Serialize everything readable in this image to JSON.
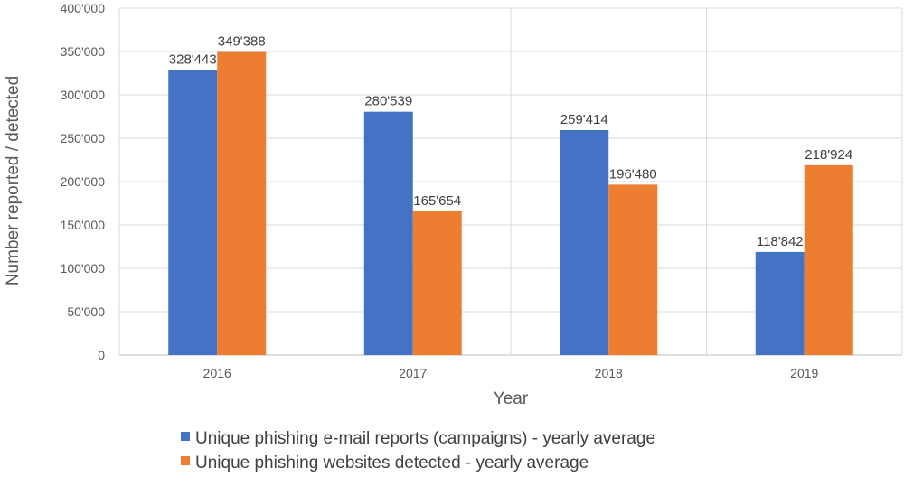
{
  "chart_data": {
    "type": "bar",
    "categories": [
      "2016",
      "2017",
      "2018",
      "2019"
    ],
    "series": [
      {
        "name": "Unique phishing e-mail reports (campaigns) - yearly average",
        "values": [
          328443,
          280539,
          259414,
          118842
        ],
        "labels": [
          "328'443",
          "280'539",
          "259'414",
          "118'842"
        ],
        "color": "#4472C4"
      },
      {
        "name": "Unique phishing websites detected - yearly average",
        "values": [
          349388,
          165654,
          196480,
          218924
        ],
        "labels": [
          "349'388",
          "165'654",
          "196'480",
          "218'924"
        ],
        "color": "#ED7D31"
      }
    ],
    "title": "",
    "xlabel": "Year",
    "ylabel": "Number reported / detected",
    "ylim": [
      0,
      400000
    ],
    "yticks": [
      0,
      50000,
      100000,
      150000,
      200000,
      250000,
      300000,
      350000,
      400000
    ],
    "ytick_labels": [
      "0",
      "50'000",
      "100'000",
      "150'000",
      "200'000",
      "250'000",
      "300'000",
      "350'000",
      "400'000"
    ],
    "grid": true,
    "legend_position": "bottom"
  }
}
